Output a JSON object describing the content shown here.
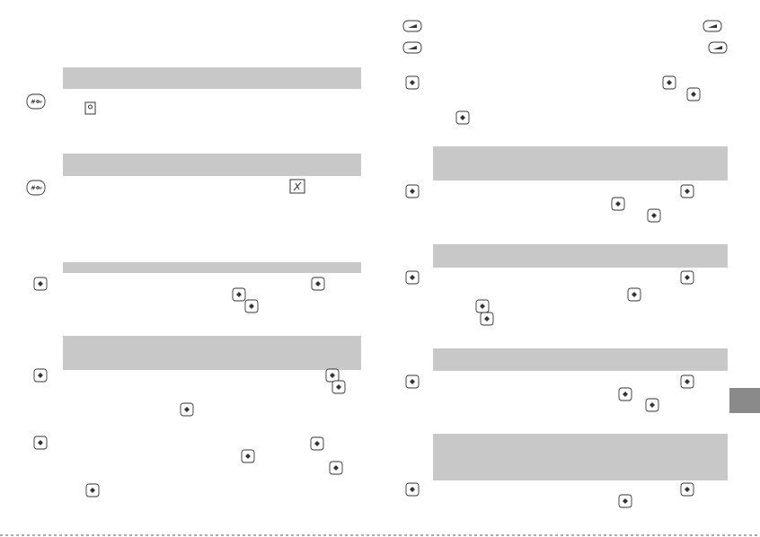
{
  "keys": [
    "#",
    "#"
  ]
}
